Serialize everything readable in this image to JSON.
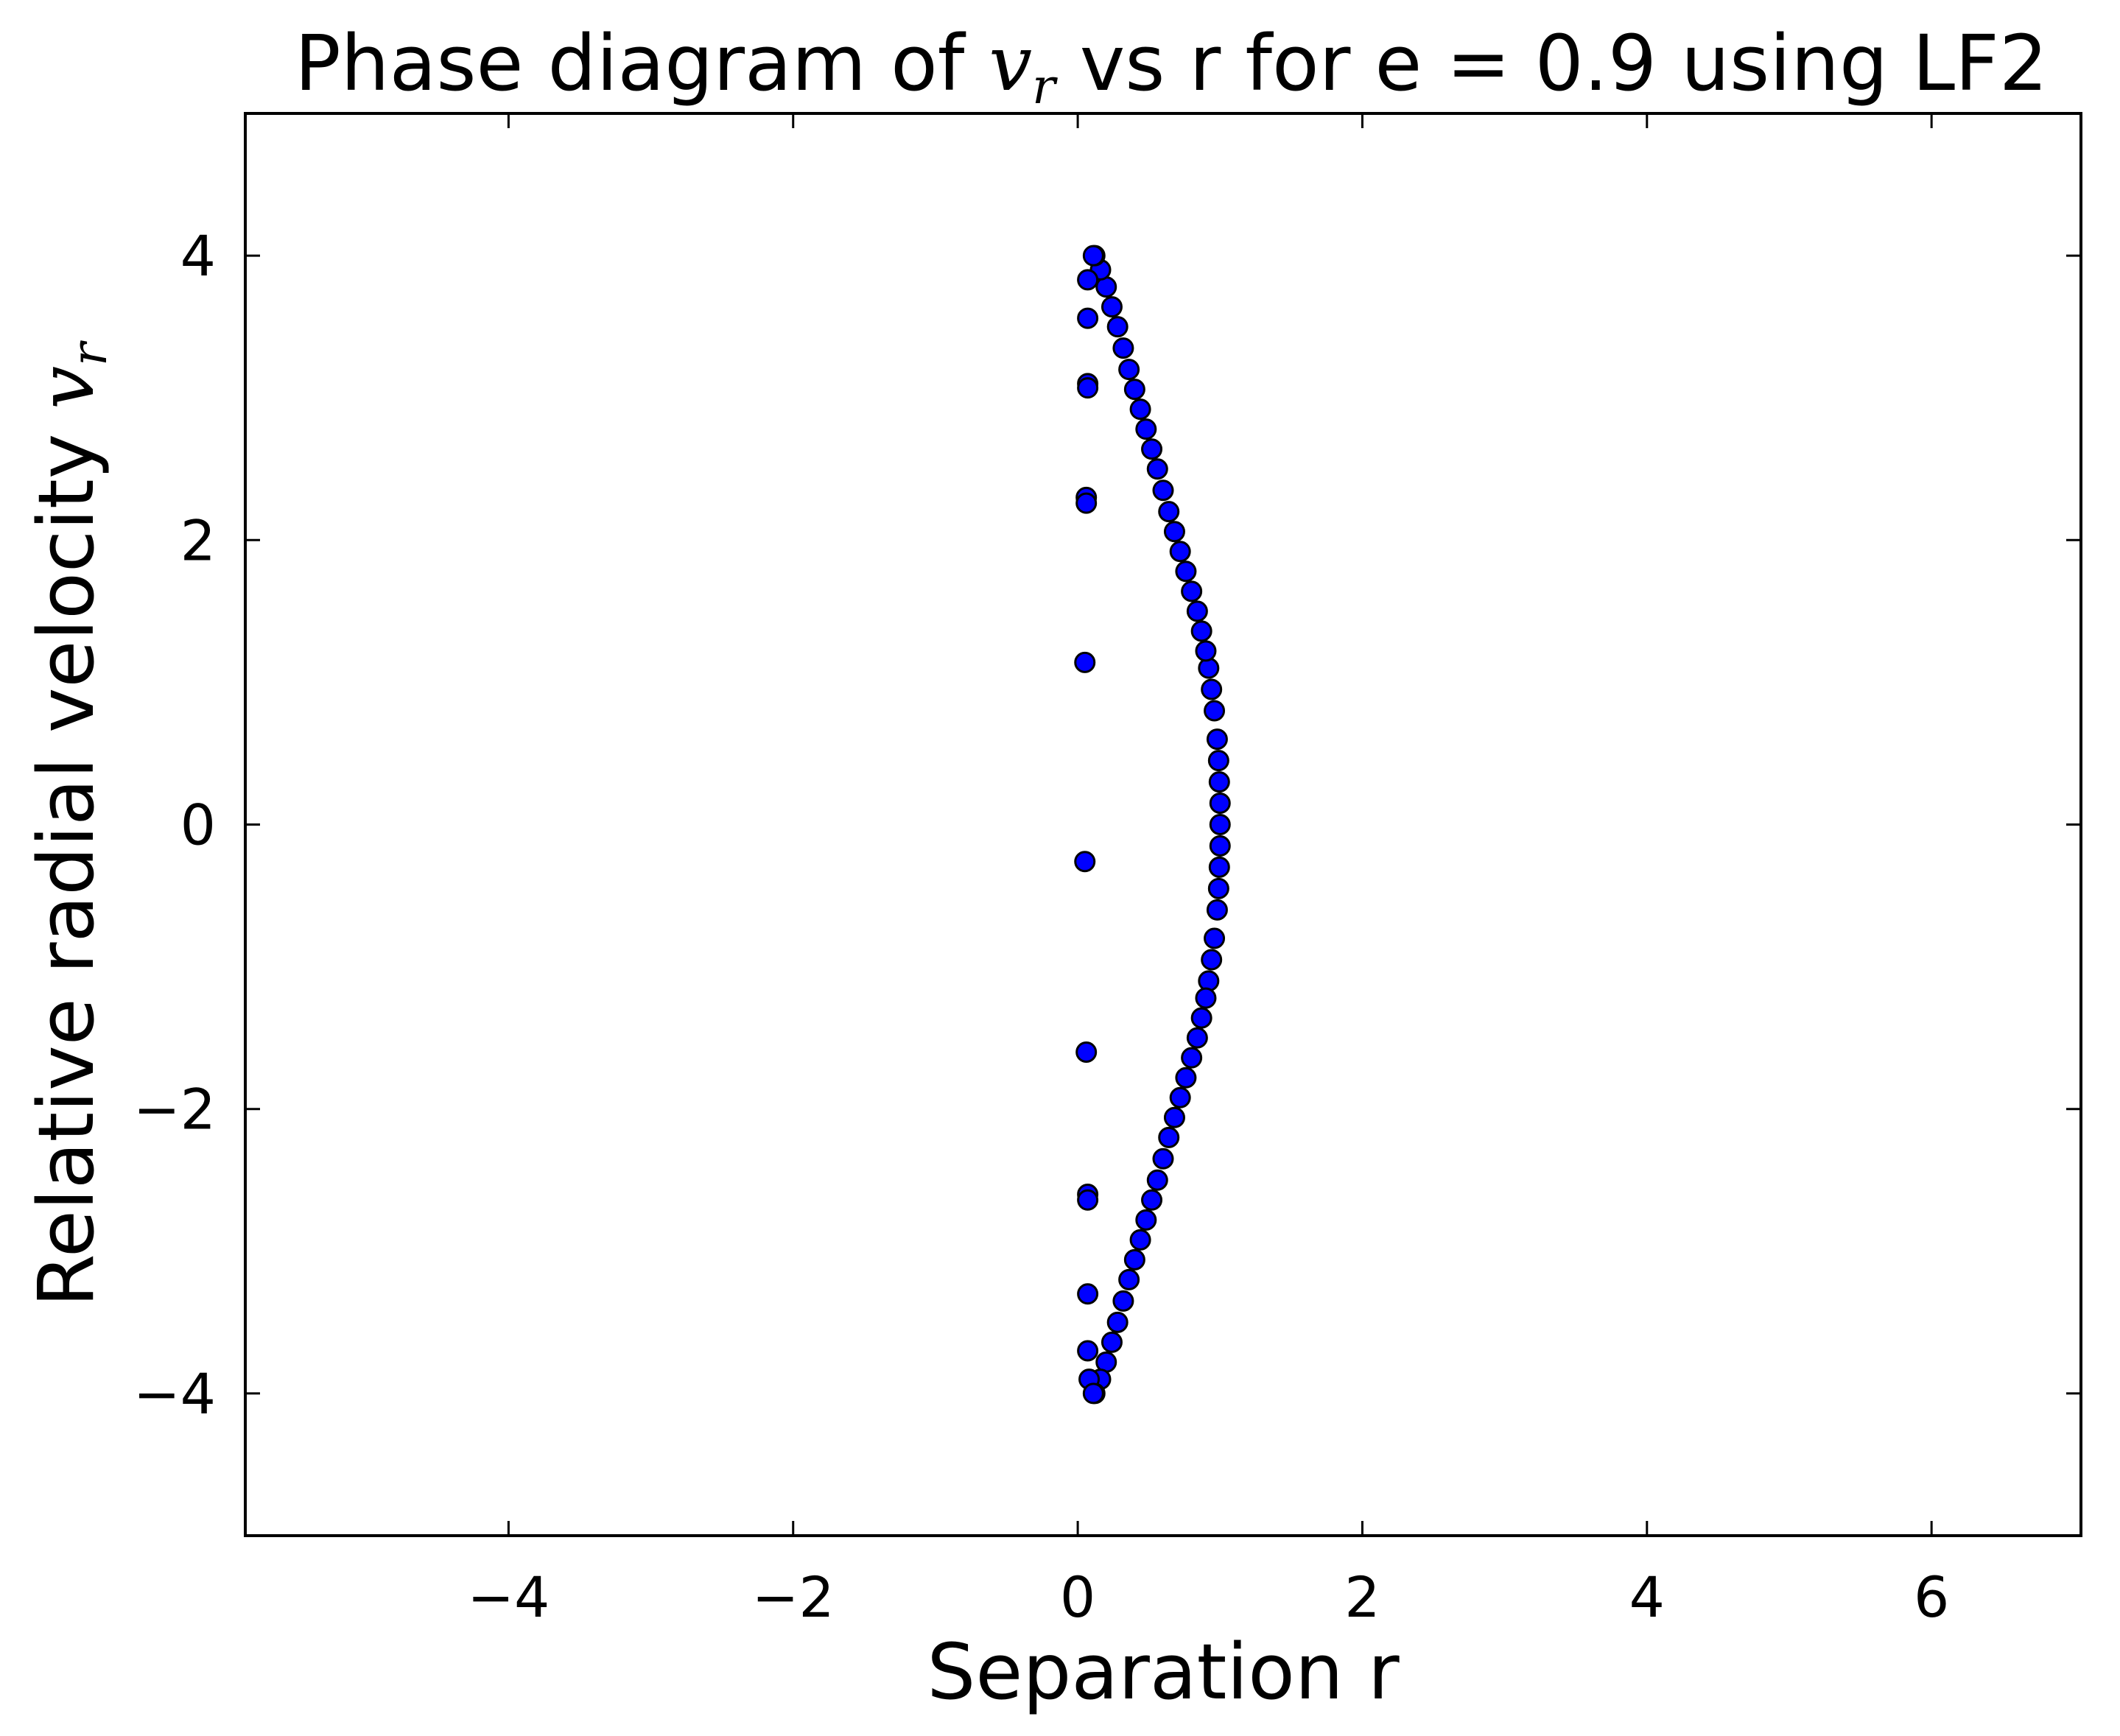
{
  "chart_data": {
    "type": "scatter",
    "title": {
      "before": "Phase diagram of ",
      "math_var": "v",
      "math_sub": "r",
      "after": " vs r for e = 0.9 using LF2"
    },
    "xlabel": "Separation r",
    "ylabel": {
      "before": "Relative radial velocity ",
      "math_var": "v",
      "math_sub": "r"
    },
    "xlim": [
      -5.85,
      7.05
    ],
    "ylim": [
      -5,
      5
    ],
    "xticks": [
      -4,
      -2,
      0,
      2,
      4,
      6
    ],
    "xtick_labels": [
      "−4",
      "−2",
      "0",
      "2",
      "4",
      "6"
    ],
    "yticks": [
      -4,
      -2,
      0,
      2,
      4
    ],
    "ytick_labels": [
      "−4",
      "−2",
      "0",
      "2",
      "4"
    ],
    "grid": false,
    "marker_color": "#0000ff",
    "marker_edge": "#000000",
    "series": [
      {
        "points": [
          [
            1.0,
            0.0
          ],
          [
            1.0,
            0.15
          ],
          [
            0.995,
            0.3
          ],
          [
            0.99,
            0.45
          ],
          [
            0.98,
            0.6
          ],
          [
            0.96,
            0.8
          ],
          [
            0.94,
            0.95
          ],
          [
            0.92,
            1.1
          ],
          [
            0.9,
            1.22
          ],
          [
            0.87,
            1.36
          ],
          [
            0.84,
            1.5
          ],
          [
            0.8,
            1.64
          ],
          [
            0.76,
            1.78
          ],
          [
            0.72,
            1.92
          ],
          [
            0.68,
            2.06
          ],
          [
            0.64,
            2.2
          ],
          [
            0.6,
            2.35
          ],
          [
            0.56,
            2.5
          ],
          [
            0.52,
            2.64
          ],
          [
            0.48,
            2.78
          ],
          [
            0.44,
            2.92
          ],
          [
            0.4,
            3.06
          ],
          [
            0.36,
            3.2
          ],
          [
            0.32,
            3.35
          ],
          [
            0.28,
            3.5
          ],
          [
            0.24,
            3.64
          ],
          [
            0.2,
            3.78
          ],
          [
            0.16,
            3.9
          ],
          [
            0.12,
            4.0
          ],
          [
            1.0,
            -0.15
          ],
          [
            0.995,
            -0.3
          ],
          [
            0.99,
            -0.45
          ],
          [
            0.98,
            -0.6
          ],
          [
            0.96,
            -0.8
          ],
          [
            0.94,
            -0.95
          ],
          [
            0.92,
            -1.1
          ],
          [
            0.9,
            -1.22
          ],
          [
            0.87,
            -1.36
          ],
          [
            0.84,
            -1.5
          ],
          [
            0.8,
            -1.64
          ],
          [
            0.76,
            -1.78
          ],
          [
            0.72,
            -1.92
          ],
          [
            0.68,
            -2.06
          ],
          [
            0.64,
            -2.2
          ],
          [
            0.6,
            -2.35
          ],
          [
            0.56,
            -2.5
          ],
          [
            0.52,
            -2.64
          ],
          [
            0.48,
            -2.78
          ],
          [
            0.44,
            -2.92
          ],
          [
            0.4,
            -3.06
          ],
          [
            0.36,
            -3.2
          ],
          [
            0.32,
            -3.35
          ],
          [
            0.28,
            -3.5
          ],
          [
            0.24,
            -3.64
          ],
          [
            0.2,
            -3.78
          ],
          [
            0.16,
            -3.9
          ],
          [
            0.12,
            -4.0
          ],
          [
            0.11,
            4.0
          ],
          [
            0.07,
            3.83
          ],
          [
            0.07,
            3.56
          ],
          [
            0.07,
            3.1
          ],
          [
            0.07,
            3.07
          ],
          [
            0.06,
            2.3
          ],
          [
            0.06,
            2.26
          ],
          [
            0.05,
            1.14
          ],
          [
            0.05,
            -0.26
          ],
          [
            0.06,
            -1.6
          ],
          [
            0.07,
            -2.6
          ],
          [
            0.07,
            -2.64
          ],
          [
            0.07,
            -3.3
          ],
          [
            0.07,
            -3.7
          ],
          [
            0.08,
            -3.9
          ],
          [
            0.11,
            -4.0
          ]
        ]
      }
    ]
  }
}
